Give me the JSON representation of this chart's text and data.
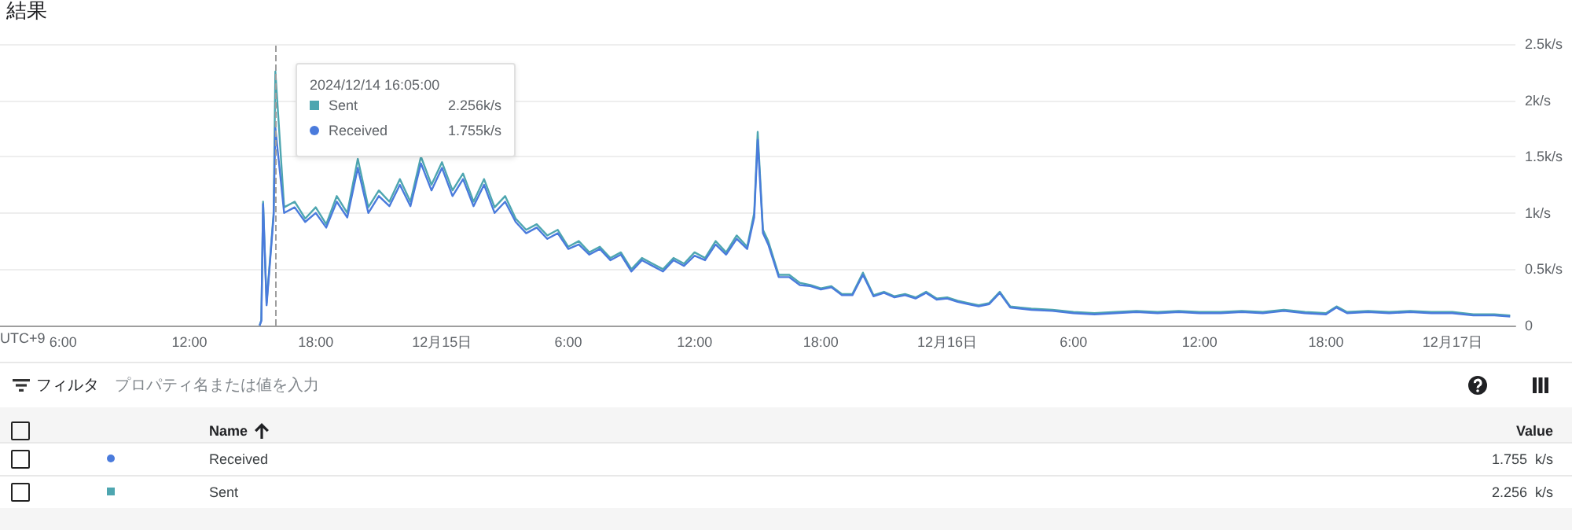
{
  "chart_data": {
    "type": "line",
    "title": "結果",
    "x": [
      "2024-12-14T15:20",
      "2024-12-14T15:25",
      "2024-12-14T15:30",
      "2024-12-14T15:40",
      "2024-12-14T16:00",
      "2024-12-14T16:05",
      "2024-12-14T16:30",
      "2024-12-14T17:00",
      "2024-12-14T17:30",
      "2024-12-14T18:00",
      "2024-12-14T18:30",
      "2024-12-14T19:00",
      "2024-12-14T19:30",
      "2024-12-14T20:00",
      "2024-12-14T20:30",
      "2024-12-14T21:00",
      "2024-12-14T21:30",
      "2024-12-14T22:00",
      "2024-12-14T22:30",
      "2024-12-14T23:00",
      "2024-12-14T23:30",
      "2024-12-15T00:00",
      "2024-12-15T00:30",
      "2024-12-15T01:00",
      "2024-12-15T01:30",
      "2024-12-15T02:00",
      "2024-12-15T02:30",
      "2024-12-15T03:00",
      "2024-12-15T03:30",
      "2024-12-15T04:00",
      "2024-12-15T04:30",
      "2024-12-15T05:00",
      "2024-12-15T05:30",
      "2024-12-15T06:00",
      "2024-12-15T06:30",
      "2024-12-15T07:00",
      "2024-12-15T07:30",
      "2024-12-15T08:00",
      "2024-12-15T08:30",
      "2024-12-15T09:00",
      "2024-12-15T09:30",
      "2024-12-15T10:00",
      "2024-12-15T10:30",
      "2024-12-15T11:00",
      "2024-12-15T11:30",
      "2024-12-15T12:00",
      "2024-12-15T12:30",
      "2024-12-15T13:00",
      "2024-12-15T13:30",
      "2024-12-15T14:00",
      "2024-12-15T14:30",
      "2024-12-15T14:50",
      "2024-12-15T15:00",
      "2024-12-15T15:15",
      "2024-12-15T15:30",
      "2024-12-15T16:00",
      "2024-12-15T16:30",
      "2024-12-15T17:00",
      "2024-12-15T17:30",
      "2024-12-15T18:00",
      "2024-12-15T18:30",
      "2024-12-15T19:00",
      "2024-12-15T19:30",
      "2024-12-15T20:00",
      "2024-12-15T20:30",
      "2024-12-15T21:00",
      "2024-12-15T21:30",
      "2024-12-15T22:00",
      "2024-12-15T22:30",
      "2024-12-15T23:00",
      "2024-12-15T23:30",
      "2024-12-16T00:00",
      "2024-12-16T00:30",
      "2024-12-16T01:00",
      "2024-12-16T01:30",
      "2024-12-16T02:00",
      "2024-12-16T02:30",
      "2024-12-16T03:00",
      "2024-12-16T03:30",
      "2024-12-16T04:00",
      "2024-12-16T05:00",
      "2024-12-16T06:00",
      "2024-12-16T07:00",
      "2024-12-16T08:00",
      "2024-12-16T09:00",
      "2024-12-16T10:00",
      "2024-12-16T11:00",
      "2024-12-16T12:00",
      "2024-12-16T13:00",
      "2024-12-16T14:00",
      "2024-12-16T15:00",
      "2024-12-16T16:00",
      "2024-12-16T17:00",
      "2024-12-16T18:00",
      "2024-12-16T18:30",
      "2024-12-16T19:00",
      "2024-12-16T20:00",
      "2024-12-16T21:00",
      "2024-12-16T22:00",
      "2024-12-16T23:00",
      "2024-12-17T00:00",
      "2024-12-17T01:00",
      "2024-12-17T02:00",
      "2024-12-17T02:45"
    ],
    "series": [
      {
        "name": "Sent",
        "color": "#4ea6b0",
        "values": [
          0,
          0.05,
          1.1,
          0.2,
          1.0,
          2.256,
          1.05,
          1.1,
          0.95,
          1.05,
          0.9,
          1.15,
          1.0,
          1.48,
          1.05,
          1.2,
          1.1,
          1.3,
          1.1,
          1.5,
          1.25,
          1.45,
          1.2,
          1.35,
          1.1,
          1.3,
          1.05,
          1.15,
          0.95,
          0.85,
          0.9,
          0.8,
          0.85,
          0.7,
          0.75,
          0.65,
          0.7,
          0.6,
          0.65,
          0.5,
          0.6,
          0.55,
          0.5,
          0.6,
          0.55,
          0.65,
          0.6,
          0.75,
          0.65,
          0.8,
          0.7,
          1.0,
          1.72,
          0.85,
          0.75,
          0.45,
          0.45,
          0.38,
          0.36,
          0.33,
          0.35,
          0.28,
          0.28,
          0.47,
          0.27,
          0.3,
          0.26,
          0.28,
          0.25,
          0.3,
          0.24,
          0.25,
          0.22,
          0.2,
          0.18,
          0.2,
          0.3,
          0.17,
          0.16,
          0.15,
          0.14,
          0.12,
          0.11,
          0.12,
          0.13,
          0.12,
          0.13,
          0.12,
          0.12,
          0.13,
          0.12,
          0.14,
          0.12,
          0.11,
          0.17,
          0.12,
          0.13,
          0.12,
          0.13,
          0.12,
          0.12,
          0.1,
          0.1,
          0.09
        ]
      },
      {
        "name": "Received",
        "color": "#4a7bdc",
        "values": [
          0,
          0.04,
          1.08,
          0.18,
          0.97,
          1.755,
          1.0,
          1.05,
          0.92,
          1.0,
          0.87,
          1.1,
          0.96,
          1.4,
          1.0,
          1.15,
          1.06,
          1.25,
          1.06,
          1.44,
          1.2,
          1.4,
          1.15,
          1.3,
          1.06,
          1.25,
          1.0,
          1.1,
          0.92,
          0.82,
          0.87,
          0.77,
          0.82,
          0.68,
          0.72,
          0.63,
          0.68,
          0.58,
          0.63,
          0.48,
          0.58,
          0.53,
          0.48,
          0.58,
          0.53,
          0.62,
          0.58,
          0.72,
          0.63,
          0.77,
          0.68,
          0.96,
          1.65,
          0.82,
          0.72,
          0.43,
          0.43,
          0.36,
          0.35,
          0.32,
          0.34,
          0.27,
          0.27,
          0.45,
          0.26,
          0.29,
          0.25,
          0.27,
          0.24,
          0.29,
          0.23,
          0.24,
          0.21,
          0.19,
          0.17,
          0.19,
          0.29,
          0.16,
          0.15,
          0.14,
          0.13,
          0.11,
          0.1,
          0.11,
          0.12,
          0.11,
          0.12,
          0.11,
          0.11,
          0.12,
          0.11,
          0.13,
          0.11,
          0.1,
          0.16,
          0.11,
          0.12,
          0.11,
          0.12,
          0.11,
          0.11,
          0.09,
          0.09,
          0.08
        ]
      }
    ],
    "xlim": [
      "2024-12-14T03:00",
      "2024-12-17T03:00"
    ],
    "xticks": [
      {
        "value": "2024-12-14T06:00",
        "label": "6:00"
      },
      {
        "value": "2024-12-14T12:00",
        "label": "12:00"
      },
      {
        "value": "2024-12-14T18:00",
        "label": "18:00"
      },
      {
        "value": "2024-12-15T00:00",
        "label": "12月15日"
      },
      {
        "value": "2024-12-15T06:00",
        "label": "6:00"
      },
      {
        "value": "2024-12-15T12:00",
        "label": "12:00"
      },
      {
        "value": "2024-12-15T18:00",
        "label": "18:00"
      },
      {
        "value": "2024-12-16T00:00",
        "label": "12月16日"
      },
      {
        "value": "2024-12-16T06:00",
        "label": "6:00"
      },
      {
        "value": "2024-12-16T12:00",
        "label": "12:00"
      },
      {
        "value": "2024-12-16T18:00",
        "label": "18:00"
      },
      {
        "value": "2024-12-17T00:00",
        "label": "12月17日"
      }
    ],
    "ylim": [
      0,
      2.5
    ],
    "yticks": [
      0,
      {
        "value": 0.5,
        "label": "0.5k/s"
      },
      {
        "value": 1,
        "label": "1k/s"
      },
      {
        "value": 1.5,
        "label": "1.5k/s"
      },
      {
        "value": 2,
        "label": "2k/s"
      },
      {
        "value": 2.5,
        "label": "2.5k/s"
      }
    ],
    "grid": "y",
    "legend": "top left",
    "marker": "none",
    "line_style": "solid",
    "ref_lines": [
      {
        "axis": "x",
        "value": "2024-12-14T16:05",
        "color": "#9e9e9e",
        "line_style": "dashed"
      }
    ],
    "annotations": [
      "2024/12/14 16:05:00",
      "2.256k/s",
      "1.755k/s",
      "UTC+9",
      "フィルタ",
      "プロパティ名または値を入力",
      "Name",
      "Value",
      "1.755  k/s",
      "2.256  k/s"
    ]
  }
}
